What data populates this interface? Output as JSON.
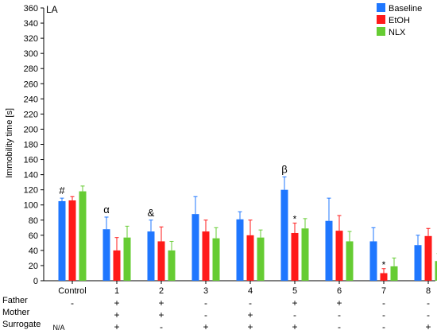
{
  "chart_data": {
    "type": "bar",
    "panel_label": "LA",
    "ylabel": "Immobility time [s]",
    "xlabel": "",
    "ylim": [
      0,
      360
    ],
    "yticks": [
      0,
      20,
      40,
      60,
      80,
      100,
      120,
      140,
      160,
      180,
      200,
      220,
      240,
      260,
      280,
      300,
      320,
      340,
      360
    ],
    "grid": false,
    "legend_position": "top-right",
    "categories": [
      "Control",
      "1",
      "2",
      "3",
      "4",
      "5",
      "6",
      "7",
      "8"
    ],
    "series": [
      {
        "name": "Baseline",
        "color": "#1f77ff",
        "values": [
          105,
          68,
          65,
          88,
          81,
          120,
          79,
          52,
          47
        ],
        "errors": [
          4,
          16,
          15,
          23,
          10,
          17,
          30,
          18,
          13
        ]
      },
      {
        "name": "EtOH",
        "color": "#ff1a1a",
        "values": [
          106,
          40,
          52,
          65,
          60,
          63,
          66,
          10,
          59
        ],
        "errors": [
          5,
          17,
          19,
          15,
          20,
          13,
          20,
          6,
          10
        ]
      },
      {
        "name": "NLX",
        "color": "#66cc33",
        "values": [
          118,
          57,
          40,
          56,
          57,
          69,
          52,
          19,
          26
        ],
        "errors": [
          7,
          15,
          12,
          14,
          10,
          13,
          13,
          11,
          10
        ]
      }
    ],
    "annotations": [
      {
        "text": "#",
        "category": 0,
        "series": 0
      },
      {
        "text": "α",
        "category": 1,
        "series": 0
      },
      {
        "text": "&",
        "category": 2,
        "series": 0
      },
      {
        "text": "β",
        "category": 5,
        "series": 0
      },
      {
        "text": "*",
        "category": 5,
        "series": 1
      },
      {
        "text": "*",
        "category": 7,
        "series": 1
      }
    ],
    "condition_rows": [
      {
        "label": "Father",
        "marks": [
          "-",
          "+",
          "+",
          "-",
          "-",
          "+",
          "+",
          "-",
          "-"
        ]
      },
      {
        "label": "Mother",
        "marks": [
          "",
          "+",
          "+",
          "-",
          "+",
          "-",
          "-",
          "-",
          "-"
        ]
      },
      {
        "label": "Surrogate",
        "marks": [
          "N/A",
          "+",
          "-",
          "+",
          "+",
          "+",
          "-",
          "-",
          "+"
        ]
      }
    ]
  }
}
